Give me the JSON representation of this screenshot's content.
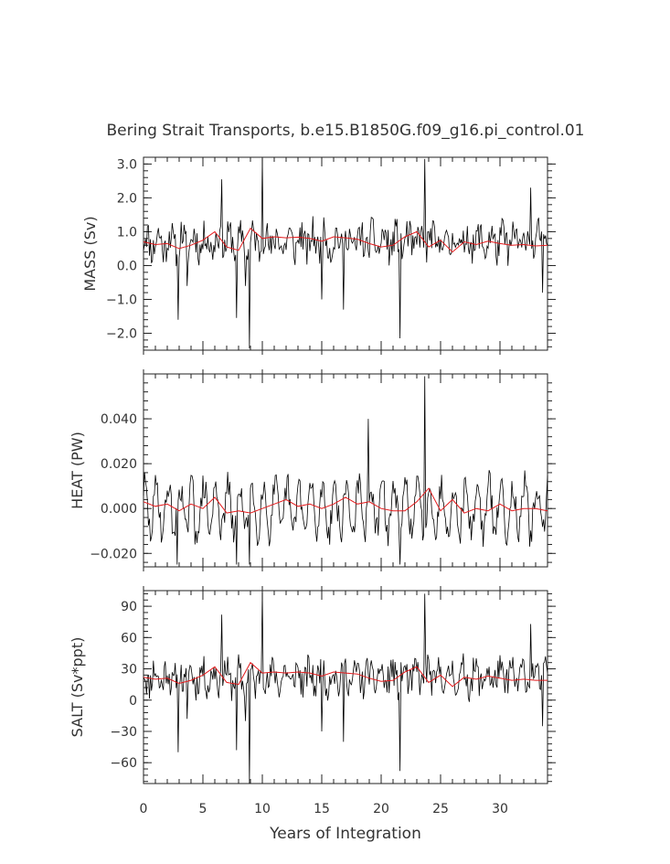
{
  "chart_data": {
    "type": "line",
    "title": "Bering Strait Transports, b.e15.B1850G.f09_g16.pi_control.01",
    "xlabel": "Years of Integration",
    "xlim": [
      0,
      34
    ],
    "x_ticks": [
      0,
      5,
      10,
      15,
      20,
      25,
      30
    ],
    "x_tick_labels": [
      "0",
      "5",
      "10",
      "15",
      "20",
      "25",
      "30"
    ],
    "series_styles": {
      "monthly": "#000000",
      "annual_mean": "#e41a1c"
    },
    "panels": [
      {
        "name": "mass",
        "ylabel": "MASS (Sv)",
        "ylim": [
          -2.5,
          3.2
        ],
        "y_ticks": [
          3.0,
          2.0,
          1.0,
          0.0,
          -1.0,
          -2.0
        ],
        "y_tick_labels": [
          "3.0",
          "2.0",
          "1.0",
          "0.0",
          "−1.0",
          "−2.0"
        ],
        "seed": 11,
        "base": 0.7,
        "amp": 0.45,
        "lo": -2.45,
        "hi": 3.15,
        "spikes": [
          [
            2.9,
            -1.6
          ],
          [
            3.7,
            -0.6
          ],
          [
            6.6,
            2.55
          ],
          [
            7.8,
            -1.55
          ],
          [
            8.6,
            -0.6
          ],
          [
            8.9,
            -2.5
          ],
          [
            10.0,
            3.2
          ],
          [
            15.0,
            -1.0
          ],
          [
            16.8,
            -1.3
          ],
          [
            21.6,
            -2.15
          ],
          [
            23.7,
            3.15
          ],
          [
            32.6,
            2.3
          ],
          [
            33.6,
            -0.8
          ]
        ],
        "annual": [
          0.7,
          0.62,
          0.65,
          0.5,
          0.6,
          0.75,
          1.0,
          0.55,
          0.45,
          1.1,
          0.8,
          0.85,
          0.82,
          0.84,
          0.8,
          0.72,
          0.85,
          0.82,
          0.78,
          0.65,
          0.55,
          0.6,
          0.85,
          1.0,
          0.55,
          0.75,
          0.4,
          0.7,
          0.62,
          0.72,
          0.65,
          0.6,
          0.62,
          0.58,
          0.6
        ]
      },
      {
        "name": "heat",
        "ylabel": "HEAT (PW)",
        "ylim": [
          -0.026,
          0.06
        ],
        "y_ticks": [
          0.04,
          0.02,
          0.0,
          -0.02
        ],
        "y_tick_labels": [
          "0.040",
          "0.020",
          "0.000",
          "−0.020"
        ],
        "seed": 29,
        "base": 0.0,
        "amp": 0.006,
        "lo": -0.025,
        "hi": 0.059,
        "spikes": [
          [
            2.8,
            -0.025
          ],
          [
            4.3,
            -0.016
          ],
          [
            7.8,
            -0.025
          ],
          [
            8.9,
            -0.025
          ],
          [
            18.9,
            0.04
          ],
          [
            21.6,
            -0.025
          ],
          [
            23.7,
            0.059
          ],
          [
            32.5,
            -0.017
          ]
        ],
        "annual": [
          0.003,
          0.001,
          0.002,
          -0.001,
          0.002,
          0.0,
          0.005,
          -0.002,
          -0.001,
          -0.002,
          0.0,
          0.002,
          0.004,
          0.001,
          0.002,
          0.0,
          0.002,
          0.005,
          0.002,
          0.003,
          0.0,
          -0.001,
          -0.001,
          0.003,
          0.009,
          -0.001,
          0.004,
          -0.002,
          0.0,
          -0.001,
          0.002,
          -0.001,
          0.0,
          0.0,
          -0.001
        ]
      },
      {
        "name": "salt",
        "ylabel": "SALT (Sv*ppt)",
        "ylim": [
          -80,
          105
        ],
        "y_ticks": [
          90,
          60,
          30,
          0,
          -30,
          -60
        ],
        "y_tick_labels": [
          "90",
          "60",
          "30",
          "0",
          "−30",
          "−60"
        ],
        "seed": 11,
        "base": 22.0,
        "amp": 14.0,
        "lo": -80,
        "hi": 103,
        "spikes": [
          [
            2.9,
            -50
          ],
          [
            3.7,
            -18
          ],
          [
            6.6,
            82
          ],
          [
            7.8,
            -48
          ],
          [
            8.6,
            -20
          ],
          [
            8.9,
            -80
          ],
          [
            10.0,
            103
          ],
          [
            15.0,
            -30
          ],
          [
            16.8,
            -40
          ],
          [
            21.6,
            -68
          ],
          [
            23.7,
            102
          ],
          [
            32.6,
            73
          ],
          [
            33.6,
            -25
          ]
        ],
        "annual": [
          22.0,
          20.0,
          21.0,
          16.0,
          19.0,
          24.0,
          32.0,
          17.0,
          15.0,
          36.0,
          26.0,
          27.0,
          26.0,
          27.0,
          26.0,
          23.0,
          27.0,
          26.0,
          25.0,
          21.0,
          18.0,
          19.0,
          27.0,
          32.0,
          17.0,
          24.0,
          13.0,
          22.0,
          20.0,
          23.0,
          21.0,
          19.0,
          20.0,
          19.0,
          19.0
        ]
      }
    ]
  }
}
